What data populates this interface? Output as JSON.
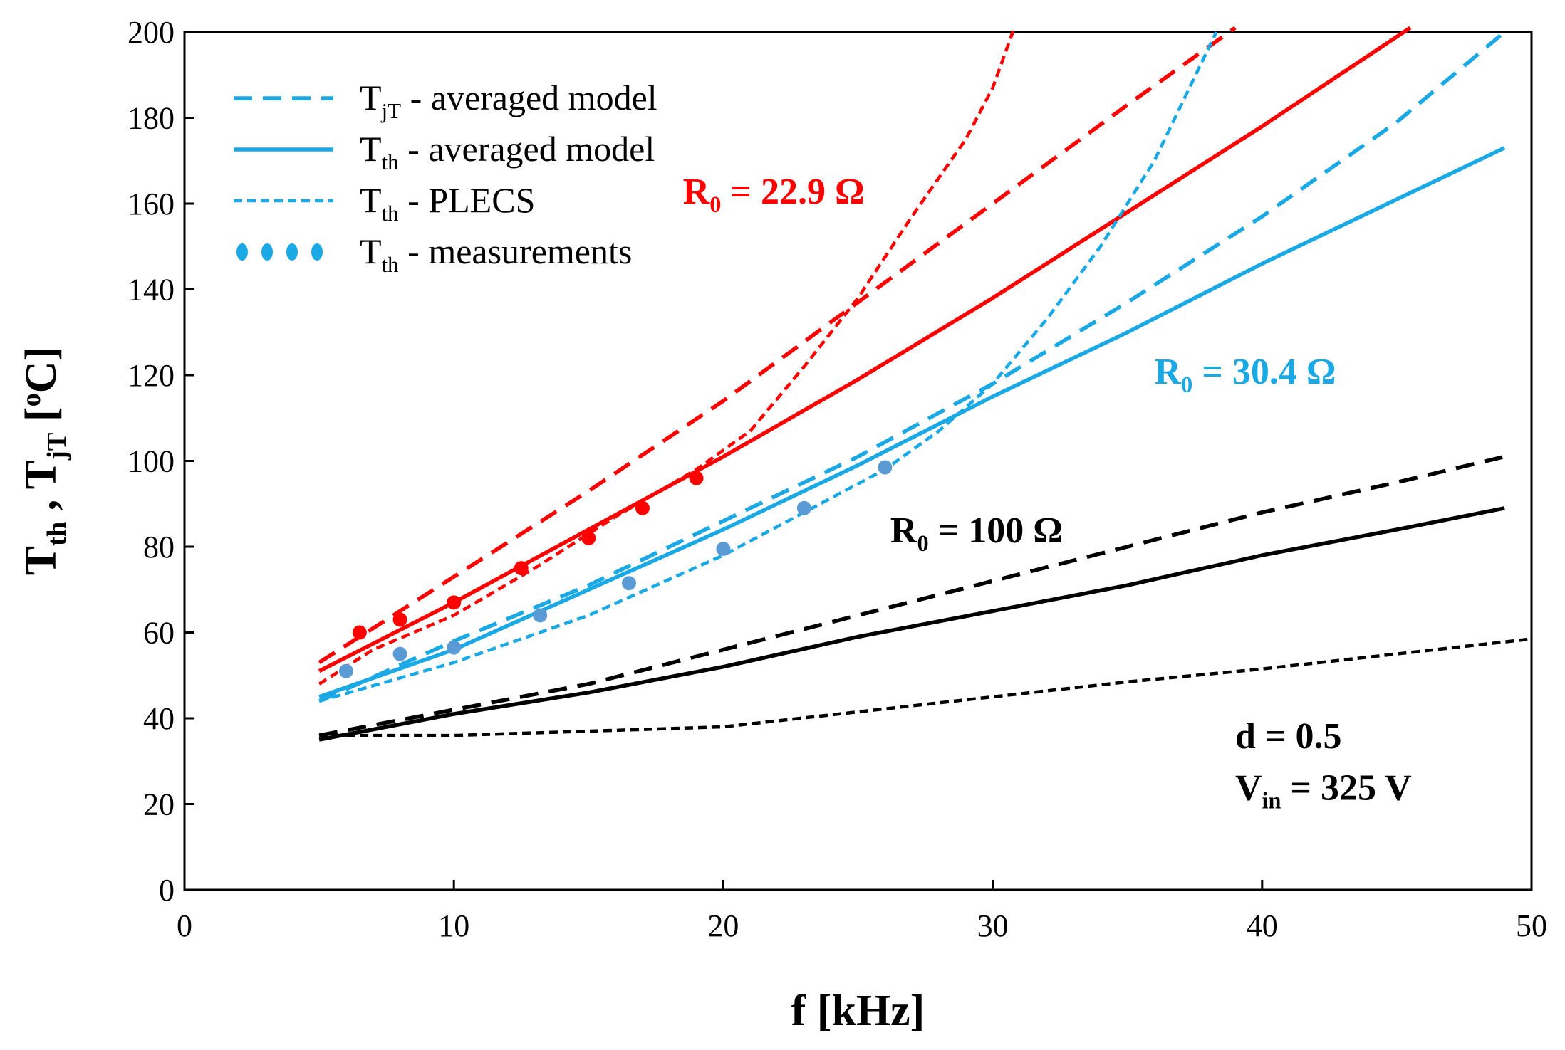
{
  "chart_data": {
    "type": "line",
    "title": "",
    "xlabel": "f [kHz]",
    "ylabel": {
      "main": "T",
      "sub1": "th",
      "sep": " , T",
      "sub2": "jT",
      "tail": " [",
      "sup": "o",
      "unit": "C]"
    },
    "xlim": [
      0,
      50
    ],
    "ylim": [
      0,
      200
    ],
    "x_ticks": [
      0,
      10,
      20,
      30,
      40,
      50
    ],
    "y_ticks": [
      0,
      20,
      40,
      60,
      80,
      100,
      120,
      140,
      160,
      180,
      200
    ],
    "grid": false,
    "colors": {
      "red": "#ff0000",
      "blue": "#1ba9e6",
      "black": "#000000",
      "marker_blue": "#5b9bd5"
    },
    "legend": {
      "placement": "top-left",
      "entries": [
        {
          "main": "T",
          "sub": "jT",
          "rest": " - averaged model",
          "style": "dashed"
        },
        {
          "main": "T",
          "sub": "th",
          "rest": " - averaged model",
          "style": "solid"
        },
        {
          "main": "T",
          "sub": "th",
          "rest": " - PLECS",
          "style": "dotted"
        },
        {
          "main": "T",
          "sub": "th",
          "rest": " - measurements",
          "style": "markers"
        }
      ]
    },
    "series": [
      {
        "name": "TjT averaged model R0=22.9",
        "color": "red",
        "style": "dashed",
        "x": [
          5,
          10,
          15,
          20,
          25,
          30,
          35,
          39
        ],
        "y": [
          53,
          73,
          93,
          114,
          137,
          160,
          183,
          201
        ]
      },
      {
        "name": "Tth averaged model R0=22.9",
        "color": "red",
        "style": "solid",
        "x": [
          5,
          10,
          15,
          20,
          25,
          30,
          35,
          40,
          45.5
        ],
        "y": [
          51,
          67,
          84,
          101,
          119,
          138,
          158,
          178,
          201
        ]
      },
      {
        "name": "Tth PLECS R0=22.9",
        "color": "red",
        "style": "dotted",
        "x": [
          5,
          7,
          10,
          13,
          16,
          19,
          21,
          23,
          25,
          27,
          29,
          30,
          30.8
        ],
        "y": [
          48,
          56,
          64,
          75,
          87,
          98,
          107,
          122,
          138,
          157,
          175,
          187,
          201
        ]
      },
      {
        "name": "Tth measurements R0=22.9",
        "color": "red",
        "style": "markers",
        "x": [
          6.5,
          8,
          10,
          12.5,
          15,
          17,
          19
        ],
        "y": [
          60,
          63,
          67,
          75,
          82,
          89,
          96
        ]
      },
      {
        "name": "TjT averaged model R0=30.4",
        "color": "blue",
        "style": "dashed",
        "x": [
          5,
          10,
          15,
          20,
          25,
          30,
          35,
          40,
          45,
          49
        ],
        "y": [
          44,
          58,
          71,
          86,
          101,
          118,
          137,
          157,
          179,
          200
        ]
      },
      {
        "name": "Tth averaged model R0=30.4",
        "color": "blue",
        "style": "solid",
        "x": [
          5,
          10,
          15,
          20,
          25,
          30,
          35,
          40,
          45,
          49
        ],
        "y": [
          45,
          56,
          70,
          84,
          99,
          115,
          130,
          146,
          161,
          173
        ]
      },
      {
        "name": "Tth PLECS R0=30.4",
        "color": "blue",
        "style": "dotted",
        "x": [
          5,
          10,
          15,
          20,
          23,
          26,
          28,
          30,
          32,
          34,
          36,
          38.3
        ],
        "y": [
          44,
          53,
          64,
          78,
          88,
          98,
          107,
          118,
          133,
          150,
          170,
          200
        ]
      },
      {
        "name": "Tth measurements R0=30.4",
        "color": "marker_blue",
        "style": "markers",
        "x": [
          6,
          8,
          10,
          13.2,
          16.5,
          20,
          23,
          26
        ],
        "y": [
          51,
          55,
          56.5,
          64,
          71.5,
          79.5,
          89,
          98.5
        ]
      },
      {
        "name": "TjT averaged model R0=100",
        "color": "black",
        "style": "dashed",
        "x": [
          5,
          10,
          15,
          20,
          25,
          30,
          35,
          40,
          45,
          49
        ],
        "y": [
          36,
          42,
          48,
          56,
          64,
          72,
          80,
          88,
          95,
          101
        ]
      },
      {
        "name": "Tth averaged model R0=100",
        "color": "black",
        "style": "solid",
        "x": [
          5,
          10,
          15,
          20,
          25,
          30,
          35,
          40,
          45,
          49
        ],
        "y": [
          35,
          41,
          46,
          52,
          59,
          65,
          71,
          78,
          84,
          89
        ]
      },
      {
        "name": "Tth PLECS R0=100",
        "color": "black",
        "style": "dotted",
        "x": [
          5,
          10,
          15,
          20,
          25,
          30,
          35,
          40,
          45,
          50
        ],
        "y": [
          36,
          36,
          37,
          38,
          41.5,
          45,
          48.5,
          51.5,
          55,
          58.5
        ]
      }
    ],
    "annotations": [
      {
        "main": "R",
        "sub": "0",
        "rest": " = 22.9 Ω",
        "color": "red",
        "at": [
          18.5,
          160
        ]
      },
      {
        "main": "R",
        "sub": "0",
        "rest": " = 30.4 Ω",
        "color": "blue",
        "at": [
          36,
          118
        ]
      },
      {
        "main": "R",
        "sub": "0",
        "rest": " = 100 Ω",
        "color": "black",
        "at": [
          26.2,
          81
        ]
      },
      {
        "main": "d = 0.5",
        "sub": "",
        "rest": "",
        "color": "black",
        "at": [
          39,
          33
        ]
      },
      {
        "main": "V",
        "sub": "in",
        "rest": " = 325 V",
        "color": "black",
        "at": [
          39,
          21
        ]
      }
    ]
  }
}
